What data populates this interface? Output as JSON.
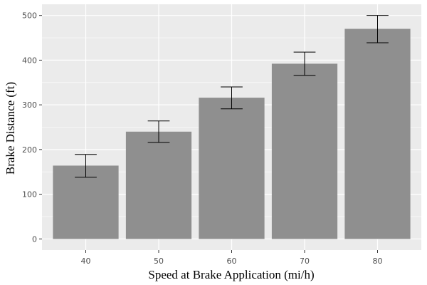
{
  "chart_data": {
    "type": "bar",
    "title": "",
    "xlabel": "Speed at Brake Application (mi/h)",
    "ylabel": "Brake Distance (ft)",
    "categories": [
      "40",
      "50",
      "60",
      "70",
      "80"
    ],
    "values": [
      164,
      240,
      316,
      392,
      470
    ],
    "error_bars": [
      {
        "low": 138,
        "high": 189
      },
      {
        "low": 216,
        "high": 264
      },
      {
        "low": 291,
        "high": 340
      },
      {
        "low": 366,
        "high": 418
      },
      {
        "low": 439,
        "high": 500
      }
    ],
    "yticks": [
      0,
      100,
      200,
      300,
      400,
      500
    ],
    "ylim": [
      -25,
      525
    ],
    "grid": true,
    "legend": "none",
    "colors": {
      "panel": "#ebebeb",
      "grid": "#ffffff",
      "bar": "#8f8f8f",
      "errorbar": "#000000"
    }
  }
}
